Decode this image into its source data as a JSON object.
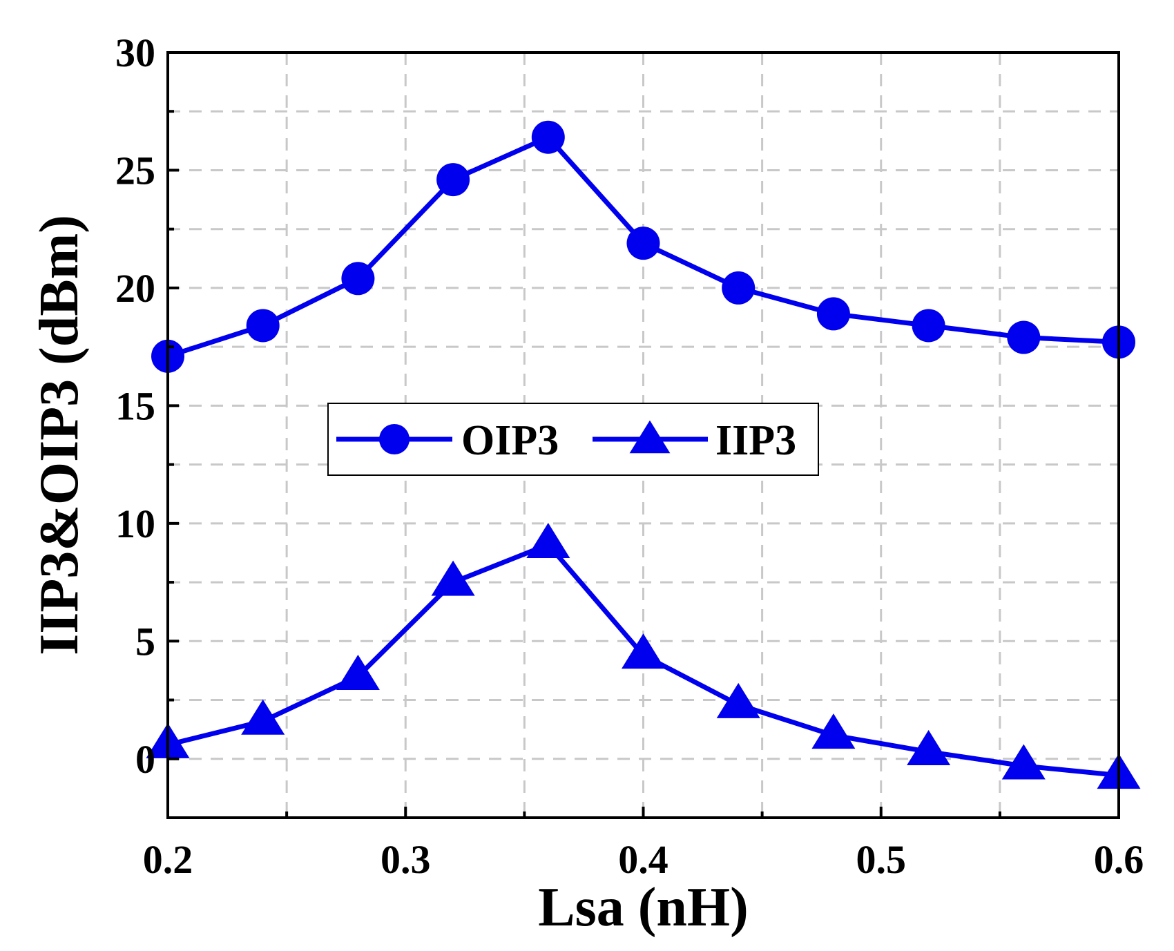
{
  "chart_data": {
    "type": "line",
    "title": "",
    "xlabel": "Lsa (nH)",
    "ylabel": "IIP3&OIP3 (dBm)",
    "xlim": [
      0.2,
      0.6
    ],
    "ylim": [
      -2.5,
      30
    ],
    "xticks": [
      0.2,
      0.3,
      0.4,
      0.5,
      0.6
    ],
    "xtick_labels": [
      "0.2",
      "0.3",
      "0.4",
      "0.5",
      "0.6"
    ],
    "yticks": [
      0,
      5,
      10,
      15,
      20,
      25,
      30
    ],
    "ytick_labels": [
      "0",
      "5",
      "10",
      "15",
      "20",
      "25",
      "30"
    ],
    "grid": true,
    "legend_position": "center",
    "x": [
      0.2,
      0.24,
      0.28,
      0.32,
      0.36,
      0.4,
      0.44,
      0.48,
      0.52,
      0.56,
      0.6
    ],
    "series": [
      {
        "name": "OIP3",
        "marker": "circle",
        "color": "#0000ee",
        "values": [
          17.1,
          18.4,
          20.4,
          24.6,
          26.4,
          21.9,
          20.0,
          18.9,
          18.4,
          17.9,
          17.7
        ]
      },
      {
        "name": "IIP3",
        "marker": "triangle",
        "color": "#0000ee",
        "values": [
          0.6,
          1.6,
          3.5,
          7.5,
          9.1,
          4.4,
          2.3,
          1.0,
          0.3,
          -0.3,
          -0.7
        ]
      }
    ]
  }
}
